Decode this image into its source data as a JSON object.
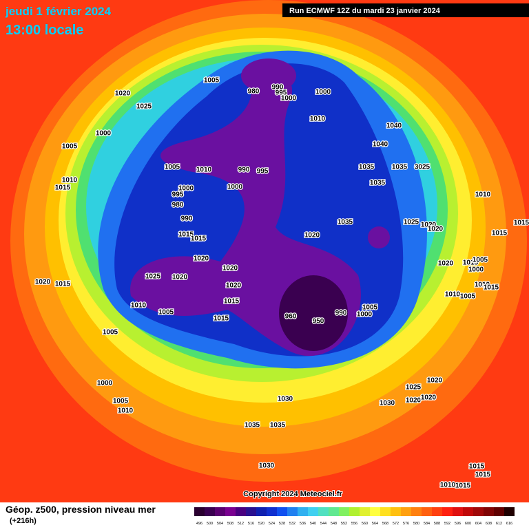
{
  "header": {
    "date": "jeudi 1 février 2024",
    "time": "13:00 locale",
    "run": "Run ECMWF 12Z du mardi 23 janvier 2024"
  },
  "footer": {
    "title": "Géop. z500, pression niveau mer",
    "lead": "(+216h)",
    "copyright": "Copyright 2024 Meteociel.fr"
  },
  "legend": {
    "values": [
      496,
      500,
      504,
      508,
      512,
      516,
      520,
      524,
      528,
      532,
      536,
      540,
      544,
      548,
      552,
      556,
      560,
      564,
      568,
      572,
      576,
      580,
      584,
      588,
      592,
      596,
      600,
      604,
      608,
      612,
      616
    ]
  },
  "isobar_labels": [
    "1020",
    "1025",
    "1005",
    "980",
    "990",
    "995",
    "1000",
    "1000",
    "1010",
    "1000",
    "1005",
    "1040",
    "1040",
    "1010",
    "1015",
    "1005",
    "1010",
    "990",
    "995",
    "1000",
    "1000",
    "995",
    "980",
    "990",
    "1035",
    "1035",
    "3025",
    "1035",
    "1010",
    "1015",
    "1035",
    "1025",
    "1020",
    "1020",
    "1015",
    "1020",
    "1015",
    "1015",
    "1020",
    "1020",
    "1025",
    "1020",
    "1020",
    "1015",
    "1020",
    "1015",
    "1020",
    "1015",
    "1005",
    "1000",
    "1010",
    "1015",
    "1010",
    "1005",
    "1010",
    "1005",
    "1015",
    "960",
    "950",
    "990",
    "1005",
    "1000",
    "1005",
    "1000",
    "1025",
    "1020",
    "1005",
    "1010",
    "1030",
    "1030",
    "1020",
    "1020",
    "1035",
    "1035",
    "1030",
    "1015",
    "1015",
    "1010",
    "1015"
  ]
}
